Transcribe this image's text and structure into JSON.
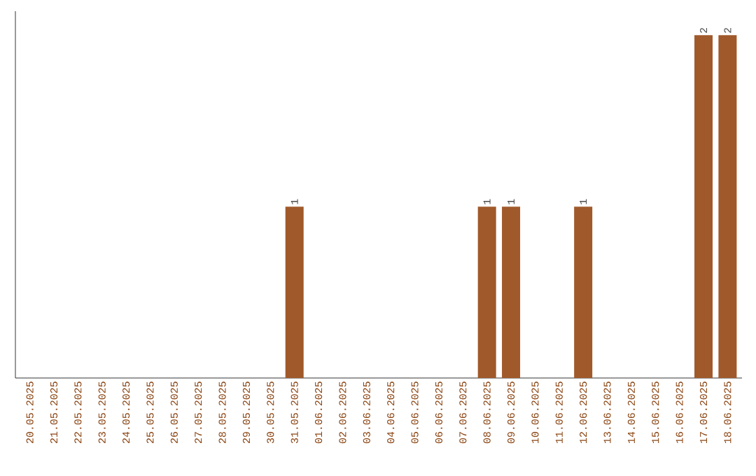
{
  "chart_data": {
    "type": "bar",
    "categories": [
      "20.05.2025",
      "21.05.2025",
      "22.05.2025",
      "23.05.2025",
      "24.05.2025",
      "25.05.2025",
      "26.05.2025",
      "27.05.2025",
      "28.05.2025",
      "29.05.2025",
      "30.05.2025",
      "31.05.2025",
      "01.06.2025",
      "02.06.2025",
      "03.06.2025",
      "04.06.2025",
      "05.06.2025",
      "06.06.2025",
      "07.06.2025",
      "08.06.2025",
      "09.06.2025",
      "10.06.2025",
      "11.06.2025",
      "12.06.2025",
      "13.06.2025",
      "14.06.2025",
      "15.06.2025",
      "16.06.2025",
      "17.06.2025",
      "18.06.2025"
    ],
    "values": [
      0,
      0,
      0,
      0,
      0,
      0,
      0,
      0,
      0,
      0,
      0,
      1,
      0,
      0,
      0,
      0,
      0,
      0,
      0,
      1,
      1,
      0,
      0,
      1,
      0,
      0,
      0,
      0,
      2,
      2
    ],
    "value_labels": [
      null,
      null,
      null,
      null,
      null,
      null,
      null,
      null,
      null,
      null,
      null,
      "1",
      null,
      null,
      null,
      null,
      null,
      null,
      null,
      "1",
      "1",
      null,
      null,
      "1",
      null,
      null,
      null,
      null,
      "2",
      "2"
    ],
    "color": "#a0592a"
  }
}
